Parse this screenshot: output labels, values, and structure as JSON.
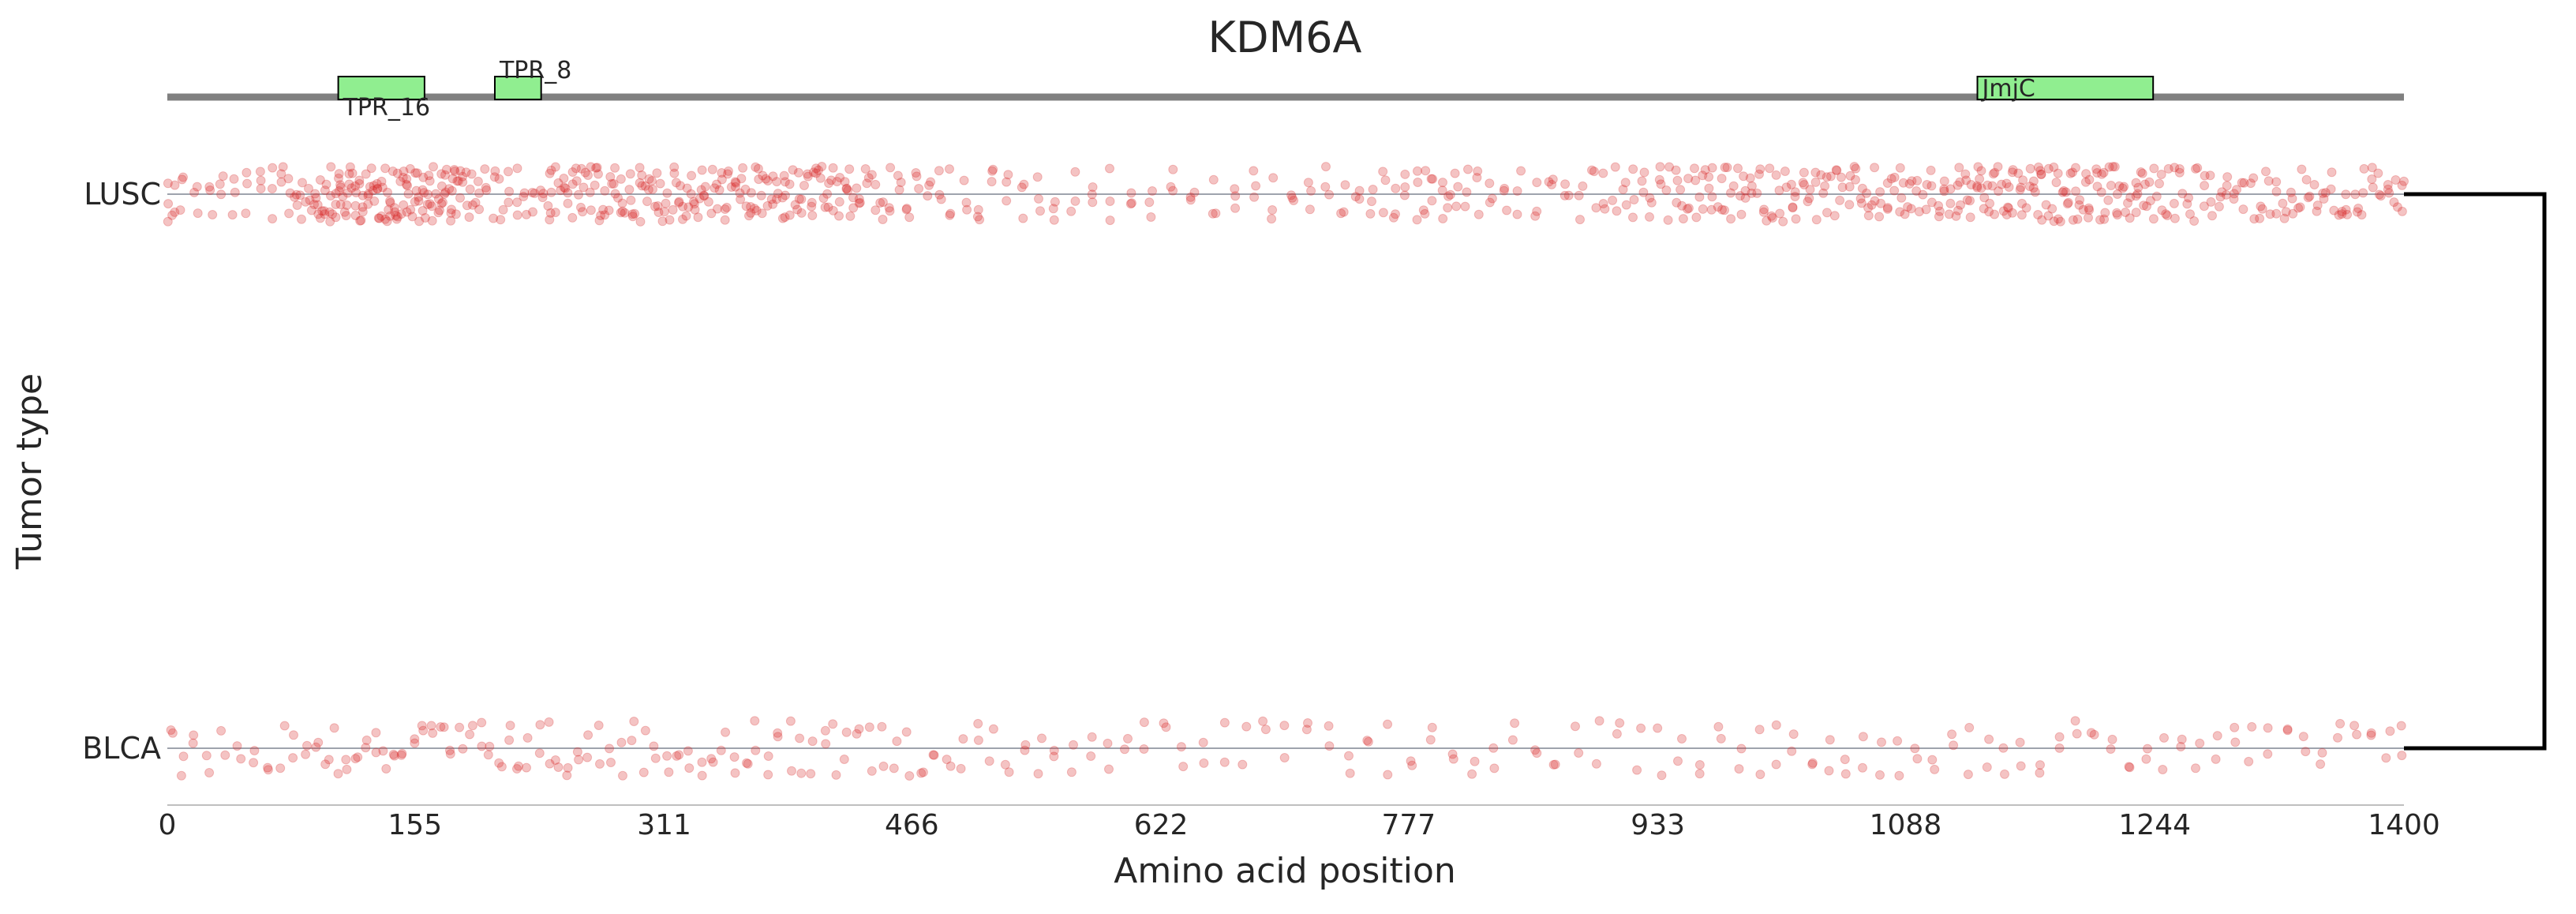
{
  "chart_data": {
    "type": "scatter",
    "title": "KDM6A",
    "xlabel": "Amino acid position",
    "ylabel": "Tumor type",
    "xlim": [
      0,
      1400
    ],
    "x_ticks": [
      0,
      155,
      311,
      466,
      622,
      777,
      933,
      1088,
      1244,
      1400
    ],
    "x_tick_labels": [
      "0",
      "155",
      "311",
      "466",
      "622",
      "777",
      "933",
      "1088",
      "1244",
      "1400"
    ],
    "categories": [
      "LUSC",
      "BLCA"
    ],
    "grid": false,
    "legend": "none",
    "domains": [
      {
        "name": "TPR_16",
        "start": 107,
        "end": 161,
        "label_position": "below"
      },
      {
        "name": "TPR_8",
        "start": 205,
        "end": 234,
        "label_position": "above"
      },
      {
        "name": "JmjC",
        "start": 1133,
        "end": 1243,
        "label_position": "inside"
      }
    ],
    "dendrogram": {
      "groups": [
        "LUSC",
        "BLCA"
      ]
    },
    "colors": {
      "points": "#d62728",
      "domain_fill": "#90ee90",
      "backbone": "#808080",
      "baseline": "#9ea3ad",
      "axis": "#bfbfbf",
      "dendrogram": "#000000"
    },
    "series": [
      {
        "name": "LUSC",
        "mutation_positions": [
          0,
          4,
          9,
          18,
          27,
          34,
          41,
          49,
          58,
          66,
          72,
          76,
          81,
          84,
          88,
          91,
          94,
          97,
          99,
          101,
          103,
          105,
          107,
          109,
          111,
          113,
          115,
          117,
          119,
          121,
          123,
          125,
          127,
          129,
          131,
          133,
          135,
          137,
          139,
          141,
          143,
          145,
          147,
          149,
          151,
          153,
          155,
          157,
          159,
          161,
          163,
          165,
          167,
          169,
          171,
          173,
          175,
          177,
          179,
          181,
          183,
          186,
          189,
          192,
          196,
          200,
          204,
          209,
          214,
          219,
          224,
          229,
          234,
          238,
          241,
          244,
          247,
          250,
          253,
          256,
          259,
          262,
          265,
          268,
          271,
          274,
          277,
          280,
          283,
          286,
          289,
          292,
          295,
          298,
          301,
          304,
          307,
          310,
          313,
          316,
          319,
          322,
          325,
          328,
          331,
          334,
          337,
          340,
          343,
          346,
          349,
          352,
          355,
          358,
          361,
          364,
          367,
          370,
          373,
          376,
          379,
          382,
          385,
          388,
          391,
          394,
          397,
          400,
          403,
          406,
          409,
          412,
          415,
          418,
          421,
          424,
          427,
          430,
          434,
          438,
          442,
          447,
          452,
          458,
          464,
          470,
          477,
          484,
          491,
          499,
          507,
          516,
          525,
          535,
          545,
          556,
          567,
          579,
          591,
          603,
          616,
          629,
          642,
          655,
          668,
          680,
          692,
          704,
          715,
          726,
          736,
          745,
          754,
          762,
          769,
          776,
          782,
          787,
          792,
          797,
          802,
          807,
          813,
          820,
          828,
          837,
          846,
          856,
          866,
          876,
          885,
          893,
          900,
          906,
          912,
          918,
          924,
          929,
          934,
          939,
          944,
          948,
          952,
          956,
          960,
          964,
          968,
          972,
          976,
          980,
          984,
          988,
          992,
          996,
          1000,
          1004,
          1008,
          1012,
          1016,
          1020,
          1024,
          1028,
          1032,
          1036,
          1040,
          1044,
          1048,
          1052,
          1056,
          1060,
          1064,
          1068,
          1072,
          1076,
          1080,
          1084,
          1088,
          1092,
          1096,
          1100,
          1104,
          1108,
          1112,
          1116,
          1120,
          1123,
          1126,
          1129,
          1132,
          1135,
          1138,
          1141,
          1144,
          1147,
          1150,
          1153,
          1156,
          1159,
          1162,
          1165,
          1168,
          1171,
          1174,
          1177,
          1180,
          1183,
          1186,
          1189,
          1192,
          1195,
          1198,
          1201,
          1204,
          1207,
          1210,
          1213,
          1216,
          1219,
          1222,
          1225,
          1228,
          1231,
          1234,
          1237,
          1240,
          1244,
          1248,
          1252,
          1256,
          1260,
          1265,
          1270,
          1275,
          1280,
          1285,
          1290,
          1295,
          1300,
          1305,
          1310,
          1315,
          1320,
          1325,
          1330,
          1335,
          1340,
          1345,
          1350,
          1355,
          1360,
          1365,
          1370,
          1375,
          1380,
          1385,
          1390,
          1395,
          1400
        ]
      },
      {
        "name": "BLCA",
        "mutation_positions": [
          2,
          9,
          17,
          26,
          35,
          45,
          55,
          64,
          72,
          80,
          87,
          94,
          100,
          106,
          112,
          118,
          124,
          130,
          136,
          142,
          148,
          154,
          160,
          166,
          172,
          178,
          184,
          190,
          196,
          202,
          208,
          214,
          220,
          226,
          232,
          238,
          244,
          250,
          257,
          264,
          271,
          278,
          285,
          292,
          299,
          306,
          313,
          320,
          327,
          334,
          341,
          348,
          355,
          362,
          369,
          376,
          383,
          390,
          397,
          404,
          411,
          418,
          425,
          432,
          440,
          448,
          456,
          464,
          472,
          480,
          489,
          498,
          507,
          516,
          526,
          536,
          546,
          556,
          567,
          578,
          589,
          600,
          612,
          624,
          636,
          648,
          661,
          674,
          687,
          700,
          713,
          726,
          739,
          752,
          765,
          778,
          791,
          804,
          817,
          830,
          843,
          856,
          869,
          882,
          895,
          908,
          921,
          934,
          947,
          960,
          972,
          984,
          996,
          1007,
          1018,
          1029,
          1040,
          1051,
          1062,
          1073,
          1084,
          1095,
          1106,
          1117,
          1128,
          1139,
          1150,
          1161,
          1172,
          1183,
          1194,
          1205,
          1216,
          1227,
          1238,
          1249,
          1260,
          1271,
          1282,
          1293,
          1304,
          1315,
          1326,
          1337,
          1348,
          1359,
          1370,
          1380,
          1390,
          1398
        ]
      }
    ]
  }
}
